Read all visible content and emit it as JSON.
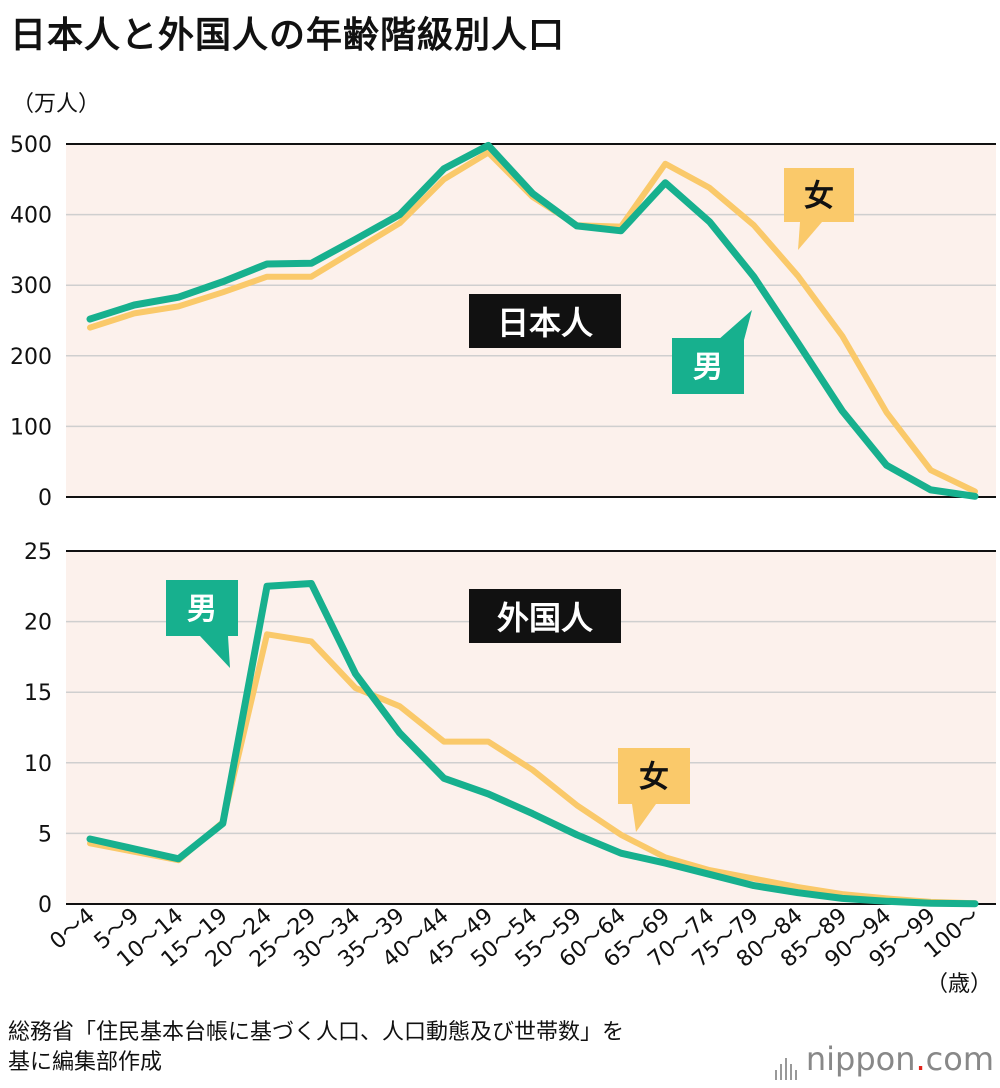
{
  "title": "日本人と外国人の年齢階級別人口",
  "unit_label": "（万人）",
  "age_unit_label": "（歳）",
  "source": {
    "line1": "総務省「住民基本台帳に基づく人口、人口動態及び世帯数」を",
    "line2": "基に編集部作成"
  },
  "brand": {
    "name": "nippon",
    "dot": ".",
    "tld": "com"
  },
  "colors": {
    "male": "#17b08e",
    "female": "#fac96a",
    "panel_bg": "#fcf1ec",
    "grid": "#cfcfcf",
    "axis": "#111111"
  },
  "chart_data": [
    {
      "type": "line",
      "title": "日本人",
      "categories": [
        "0〜4",
        "5〜9",
        "10〜14",
        "15〜19",
        "20〜24",
        "25〜29",
        "30〜34",
        "35〜39",
        "40〜44",
        "45〜49",
        "50〜54",
        "55〜59",
        "60〜64",
        "65〜69",
        "70〜74",
        "75〜79",
        "80〜84",
        "85〜89",
        "90〜94",
        "95〜99",
        "100〜"
      ],
      "ylim": [
        0,
        500
      ],
      "yticks": [
        0,
        100,
        200,
        300,
        400,
        500
      ],
      "ylabel": "（万人）",
      "xlabel": "（歳）",
      "grid": true,
      "series": [
        {
          "name": "女",
          "values": [
            240,
            260,
            270,
            290,
            312,
            312,
            350,
            388,
            450,
            488,
            425,
            385,
            383,
            472,
            438,
            385,
            313,
            228,
            120,
            38,
            8
          ]
        },
        {
          "name": "男",
          "values": [
            252,
            272,
            283,
            305,
            330,
            331,
            365,
            400,
            465,
            498,
            430,
            384,
            377,
            445,
            390,
            312,
            218,
            122,
            45,
            10,
            1
          ]
        }
      ]
    },
    {
      "type": "line",
      "title": "外国人",
      "categories": [
        "0〜4",
        "5〜9",
        "10〜14",
        "15〜19",
        "20〜24",
        "25〜29",
        "30〜34",
        "35〜39",
        "40〜44",
        "45〜49",
        "50〜54",
        "55〜59",
        "60〜64",
        "65〜69",
        "70〜74",
        "75〜79",
        "80〜84",
        "85〜89",
        "90〜94",
        "95〜99",
        "100〜"
      ],
      "ylim": [
        0,
        25
      ],
      "yticks": [
        0,
        5,
        10,
        15,
        20,
        25
      ],
      "ylabel": "（万人）",
      "xlabel": "（歳）",
      "grid": true,
      "series": [
        {
          "name": "女",
          "values": [
            4.3,
            3.7,
            3.1,
            5.8,
            19.1,
            18.6,
            15.3,
            14.0,
            11.5,
            11.5,
            9.5,
            7.0,
            4.9,
            3.3,
            2.4,
            1.8,
            1.2,
            0.7,
            0.4,
            0.15,
            0.05
          ]
        },
        {
          "name": "男",
          "values": [
            4.6,
            3.9,
            3.2,
            5.7,
            22.5,
            22.7,
            16.3,
            12.1,
            8.9,
            7.8,
            6.4,
            4.9,
            3.6,
            2.9,
            2.1,
            1.3,
            0.8,
            0.4,
            0.2,
            0.06,
            0.02
          ]
        }
      ]
    }
  ]
}
